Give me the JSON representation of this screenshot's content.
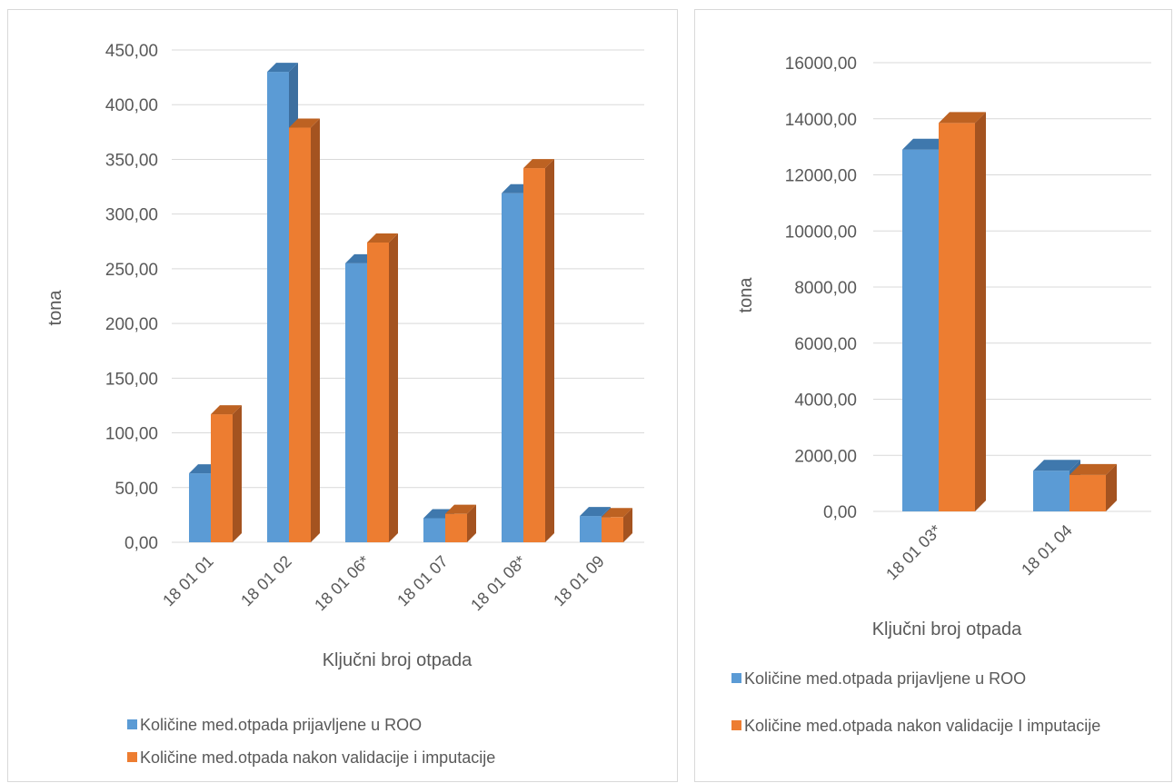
{
  "colors": {
    "blue": "#5b9bd5",
    "blue_side": "#3d6f9f",
    "blue_top": "#3f78ad",
    "orange": "#ed7d31",
    "orange_side": "#a45320",
    "orange_top": "#bd6222",
    "grid": "#d9d9d9"
  },
  "chart_data": [
    {
      "type": "bar",
      "title": "",
      "xlabel": "Ključni broj otpada",
      "ylabel": "tona",
      "ylim": [
        0,
        450
      ],
      "yticks": [
        "0,00",
        "50,00",
        "100,00",
        "150,00",
        "200,00",
        "250,00",
        "300,00",
        "350,00",
        "400,00",
        "450,00"
      ],
      "categories": [
        "18 01 01",
        "18 01 02",
        "18 01 06*",
        "18 01 07",
        "18 01 08*",
        "18 01 09"
      ],
      "series": [
        {
          "name": "Količine med.otpada prijavljene u ROO",
          "values": [
            63,
            430,
            255,
            22,
            319,
            24
          ]
        },
        {
          "name": "Količine med.otpada nakon validacije i imputacije",
          "values": [
            117,
            379,
            274,
            26,
            342,
            23
          ]
        }
      ],
      "legend": "bottom",
      "grid": true
    },
    {
      "type": "bar",
      "title": "",
      "xlabel": "Ključni broj otpada",
      "ylabel": "tona",
      "ylim": [
        0,
        16000
      ],
      "yticks": [
        "0,00",
        "2000,00",
        "4000,00",
        "6000,00",
        "8000,00",
        "10000,00",
        "12000,00",
        "14000,00",
        "16000,00"
      ],
      "categories": [
        "18 01 03*",
        "18 01 04"
      ],
      "series": [
        {
          "name": "Količine med.otpada prijavljene u ROO",
          "values": [
            12900,
            1450
          ]
        },
        {
          "name": "Količine med.otpada nakon validacije I imputacije",
          "values": [
            13850,
            1300
          ]
        }
      ],
      "legend": "bottom",
      "grid": true
    }
  ]
}
